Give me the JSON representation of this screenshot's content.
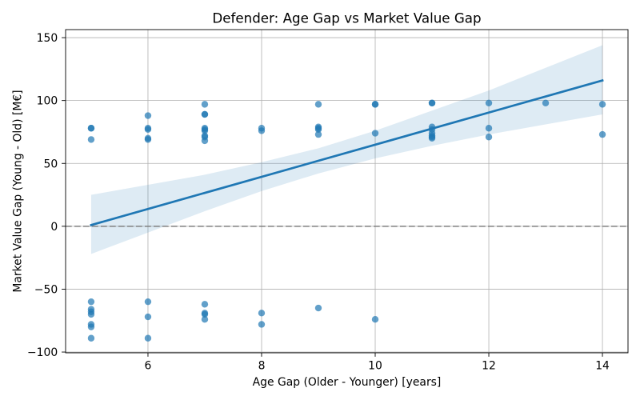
{
  "chart_data": {
    "type": "scatter",
    "title": "Defender: Age Gap vs Market Value Gap",
    "xlabel": "Age Gap (Older - Younger) [years]",
    "ylabel": "Market Value Gap (Young - Old) [M€]",
    "xlim": [
      4.55,
      14.45
    ],
    "ylim": [
      -100.6,
      156.4
    ],
    "xticks": [
      6,
      8,
      10,
      12,
      14
    ],
    "xtick_labels": [
      "6",
      "8",
      "10",
      "12",
      "14"
    ],
    "yticks": [
      -100,
      -50,
      0,
      50,
      100,
      150
    ],
    "ytick_labels": [
      "−100",
      "−50",
      "0",
      "50",
      "100",
      "150"
    ],
    "grid": true,
    "x": [
      5,
      5,
      5,
      5,
      5,
      5,
      5,
      5,
      5,
      5,
      6,
      6,
      6,
      6,
      6,
      6,
      6,
      6,
      7,
      7,
      7,
      7,
      7,
      7,
      7,
      7,
      7,
      7,
      7,
      7,
      7,
      8,
      8,
      8,
      8,
      9,
      9,
      9,
      9,
      9,
      9,
      10,
      10,
      10,
      10,
      11,
      11,
      11,
      11,
      11,
      11,
      11,
      11,
      12,
      12,
      12,
      13,
      14,
      14
    ],
    "y": [
      78,
      78,
      69,
      -60,
      -66,
      -68,
      -70,
      -78,
      -80,
      -89,
      88,
      78,
      77,
      70,
      69,
      -60,
      -72,
      -89,
      97,
      89,
      89,
      78,
      77,
      76,
      72,
      71,
      68,
      -62,
      -69,
      -70,
      -74,
      78,
      76,
      -69,
      -78,
      97,
      79,
      78,
      77,
      73,
      -65,
      97,
      97,
      74,
      -74,
      98,
      98,
      79,
      77,
      74,
      72,
      71,
      70,
      98,
      78,
      71,
      98,
      97,
      73
    ],
    "regression": {
      "x": [
        5,
        14
      ],
      "y": [
        1,
        116
      ]
    },
    "confidence_band": {
      "x": [
        5,
        6,
        7,
        8,
        9,
        10,
        11,
        12,
        13,
        14
      ],
      "upper": [
        25,
        33,
        41,
        51,
        62,
        76,
        92,
        108,
        126,
        144
      ],
      "lower": [
        -22,
        -5,
        12,
        28,
        42,
        54,
        64,
        73,
        81,
        89
      ]
    },
    "reference_line": {
      "y": 0,
      "style": "dashed"
    },
    "colors": {
      "series": "#1f77b4",
      "grid": "#b0b0b0",
      "reference_line": "#808080",
      "axes": "#000000"
    },
    "point_alpha": 0.7,
    "band_alpha": 0.15
  }
}
